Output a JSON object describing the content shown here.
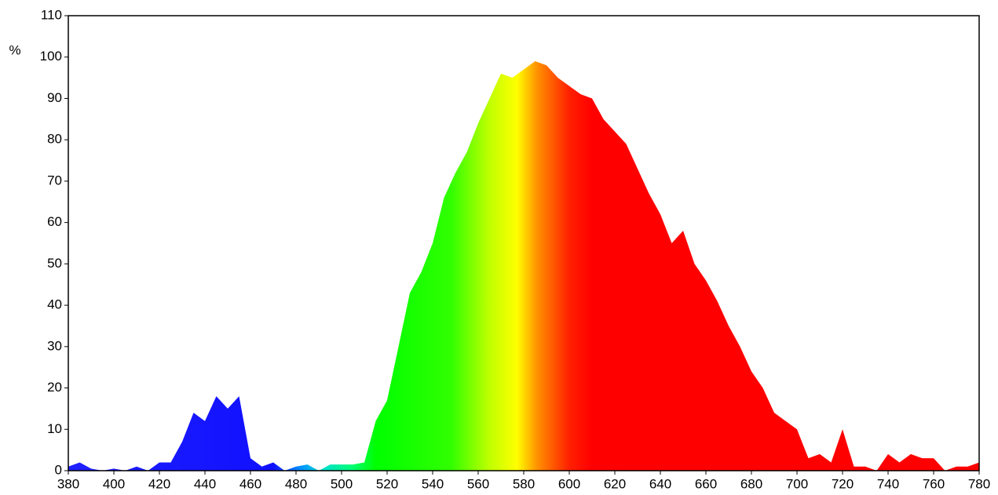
{
  "chart_data": {
    "type": "area",
    "y_label": "%",
    "x": [
      380,
      385,
      390,
      395,
      400,
      405,
      410,
      415,
      420,
      425,
      430,
      435,
      440,
      445,
      450,
      455,
      460,
      465,
      470,
      475,
      480,
      485,
      490,
      495,
      500,
      505,
      510,
      515,
      520,
      525,
      530,
      535,
      540,
      545,
      550,
      555,
      560,
      565,
      570,
      575,
      580,
      585,
      590,
      595,
      600,
      605,
      610,
      615,
      620,
      625,
      630,
      635,
      640,
      645,
      650,
      655,
      660,
      665,
      670,
      675,
      680,
      685,
      690,
      695,
      700,
      705,
      710,
      715,
      720,
      725,
      730,
      735,
      740,
      745,
      750,
      755,
      760,
      765,
      770,
      775,
      780
    ],
    "values": [
      1,
      2,
      0.5,
      0,
      0.5,
      0,
      1,
      0,
      2,
      2,
      7,
      14,
      12,
      18,
      15,
      18,
      3,
      1,
      2,
      0,
      1,
      1.5,
      0,
      1.5,
      1.5,
      1.5,
      2,
      12,
      17,
      30,
      43,
      48,
      55,
      66,
      72,
      77,
      84,
      90,
      96,
      95,
      97,
      99,
      98,
      95,
      93,
      91,
      90,
      85,
      82,
      79,
      73,
      67,
      62,
      55,
      58,
      50,
      46,
      41,
      35,
      30,
      24,
      20,
      14,
      12,
      10,
      3,
      4,
      2,
      10,
      1,
      1,
      0,
      4,
      2,
      4,
      3,
      3,
      0,
      1,
      1,
      2
    ],
    "colors": [
      {
        "at": 380,
        "color": "#2020ff"
      },
      {
        "at": 470,
        "color": "#1010ff"
      },
      {
        "at": 482,
        "color": "#0090ff"
      },
      {
        "at": 492,
        "color": "#00e0d0"
      },
      {
        "at": 505,
        "color": "#00ff70"
      },
      {
        "at": 515,
        "color": "#00ff00"
      },
      {
        "at": 548,
        "color": "#30ff00"
      },
      {
        "at": 565,
        "color": "#c0ff00"
      },
      {
        "at": 577,
        "color": "#ffff00"
      },
      {
        "at": 586,
        "color": "#ff9000"
      },
      {
        "at": 600,
        "color": "#ff2000"
      },
      {
        "at": 610,
        "color": "#ff0000"
      },
      {
        "at": 780,
        "color": "#ff0000"
      }
    ],
    "xlim": [
      380,
      780
    ],
    "xticks": [
      380,
      400,
      420,
      440,
      460,
      480,
      500,
      520,
      540,
      560,
      580,
      600,
      620,
      640,
      660,
      680,
      700,
      720,
      740,
      760,
      780
    ],
    "ylim": [
      0,
      110
    ],
    "yticks": [
      0,
      10,
      20,
      30,
      40,
      50,
      60,
      70,
      80,
      90,
      100,
      110
    ]
  }
}
